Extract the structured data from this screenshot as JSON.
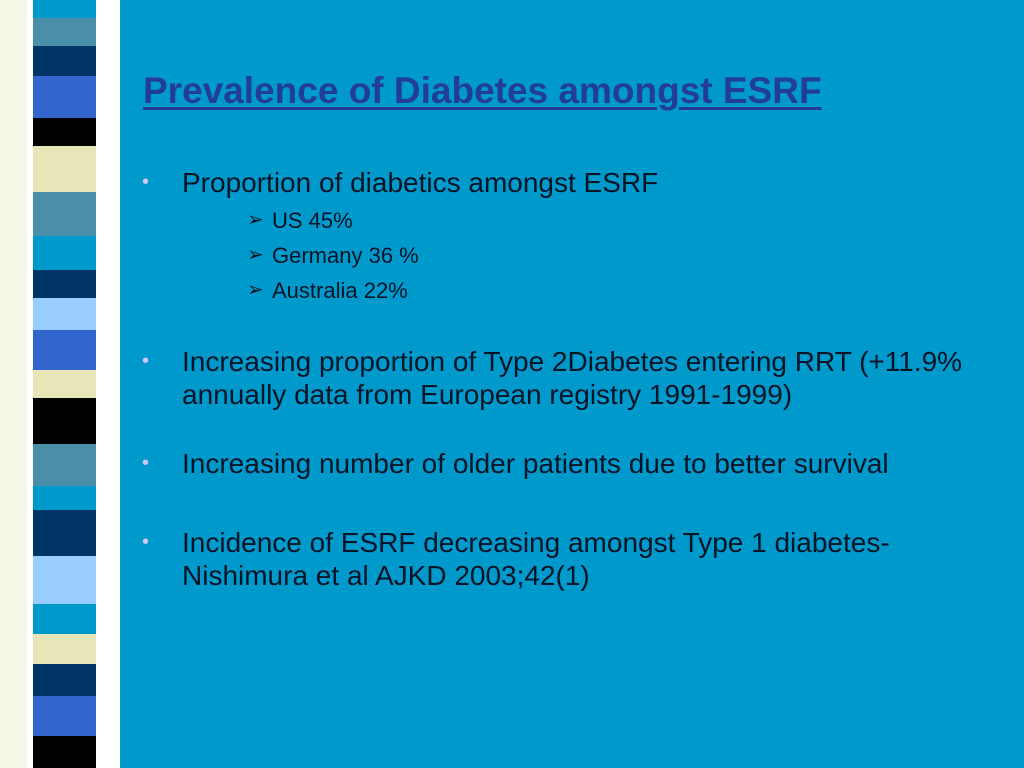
{
  "slide": {
    "title": "Prevalence of Diabetes amongst ESRF",
    "bullets": [
      {
        "marker": "•",
        "text": "Proportion of diabetics amongst ESRF",
        "sub_items": [
          {
            "marker": "➢",
            "text": "US  45%"
          },
          {
            "marker": "➢",
            "text": "Germany 36 %"
          },
          {
            "marker": "➢",
            "text": "Australia 22%"
          }
        ]
      },
      {
        "marker": "•",
        "text": "Increasing proportion of Type 2Diabetes entering RRT  (+11.9% annually data from European registry 1991-1999)"
      },
      {
        "marker": "•",
        "text": "Increasing number of older patients due to better survival"
      },
      {
        "marker": "•",
        "text": "Incidence of ESRF decreasing amongst Type 1 diabetes- Nishimura et al AJKD 2003;42(1)"
      }
    ]
  },
  "colors": {
    "background": "#0099CC",
    "title": "#233D97",
    "text": "#071425",
    "bullet": "#D0C8F0",
    "stripe_palette": [
      "#0099CC",
      "#003366",
      "#3366CC",
      "#000000",
      "#E6E6B8",
      "#4A8FA8",
      "#99CCFF",
      "#FFFFFF"
    ]
  }
}
